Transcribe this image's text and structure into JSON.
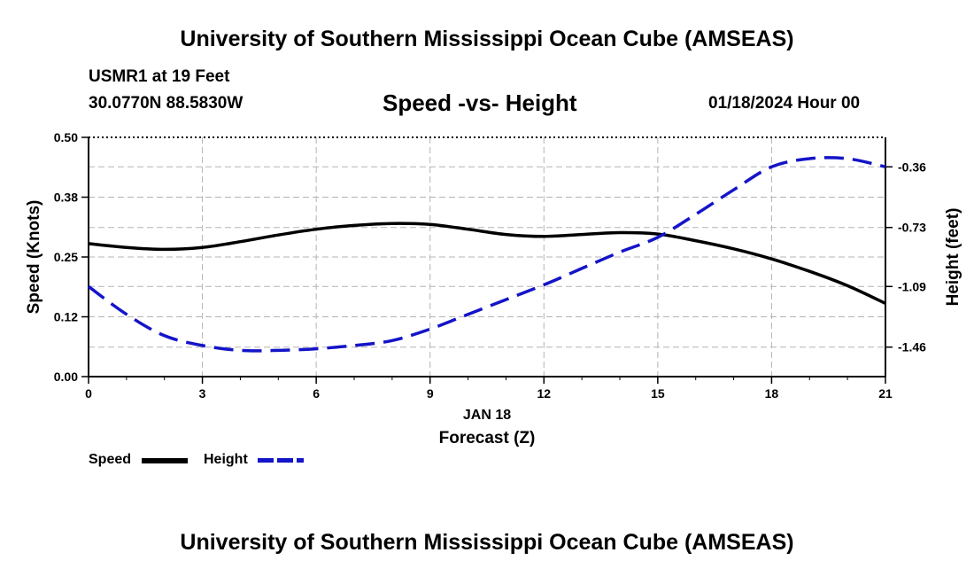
{
  "header": {
    "title_top": "University of Southern Mississippi Ocean Cube (AMSEAS)",
    "station": "USMR1 at 19 Feet",
    "coords": "30.0770N  88.5830W",
    "chart_title": "Speed -vs- Height",
    "datetime": "01/18/2024 Hour 00"
  },
  "footer": {
    "title_bottom": "University of Southern Mississippi Ocean Cube (AMSEAS)"
  },
  "chart_data": {
    "type": "line",
    "title": "Speed -vs- Height",
    "xlabel": "Forecast (Z)",
    "xsublabel": "JAN 18",
    "ylabel_left": "Speed (Knots)",
    "ylabel_right": "Height (feet)",
    "xlim": [
      0,
      21
    ],
    "ylim_left": [
      0,
      0.5
    ],
    "ylim_right": [
      -1.64,
      -0.18
    ],
    "x_ticks": [
      0,
      3,
      6,
      9,
      12,
      15,
      18,
      21
    ],
    "x_tick_labels": [
      "0",
      "3",
      "6",
      "9",
      "12",
      "15",
      "18",
      "21"
    ],
    "y_left_ticks": [
      0,
      0.125,
      0.25,
      0.375,
      0.5
    ],
    "y_left_tick_labels": [
      "0.00",
      "0.12",
      "0.25",
      "0.38",
      "0.50"
    ],
    "y_right_ticks": [
      -1.46,
      -1.09,
      -0.73,
      -0.36
    ],
    "y_right_tick_labels": [
      "-1.46",
      "-1.09",
      "-0.73",
      "-0.36"
    ],
    "grid": true,
    "legend_position": "bottom-left",
    "series": [
      {
        "name": "Speed",
        "axis": "left",
        "style": "solid",
        "color": "#000000",
        "x": [
          0,
          1,
          2,
          3,
          4,
          5,
          6,
          7,
          8,
          9,
          10,
          11,
          12,
          13,
          14,
          15,
          16,
          17,
          18,
          19,
          20,
          21
        ],
        "values": [
          0.278,
          0.27,
          0.266,
          0.27,
          0.282,
          0.296,
          0.308,
          0.316,
          0.32,
          0.318,
          0.308,
          0.297,
          0.293,
          0.297,
          0.301,
          0.298,
          0.284,
          0.267,
          0.246,
          0.22,
          0.19,
          0.153
        ]
      },
      {
        "name": "Height",
        "axis": "right",
        "style": "dashed",
        "color": "#1414c8",
        "x": [
          0,
          1,
          2,
          3,
          4,
          5,
          6,
          7,
          8,
          9,
          10,
          11,
          12,
          13,
          14,
          15,
          16,
          17,
          18,
          19,
          20,
          21
        ],
        "values": [
          -1.09,
          -1.26,
          -1.39,
          -1.45,
          -1.48,
          -1.48,
          -1.47,
          -1.45,
          -1.42,
          -1.35,
          -1.26,
          -1.17,
          -1.08,
          -0.98,
          -0.88,
          -0.79,
          -0.65,
          -0.5,
          -0.36,
          -0.31,
          -0.31,
          -0.36
        ]
      }
    ]
  }
}
